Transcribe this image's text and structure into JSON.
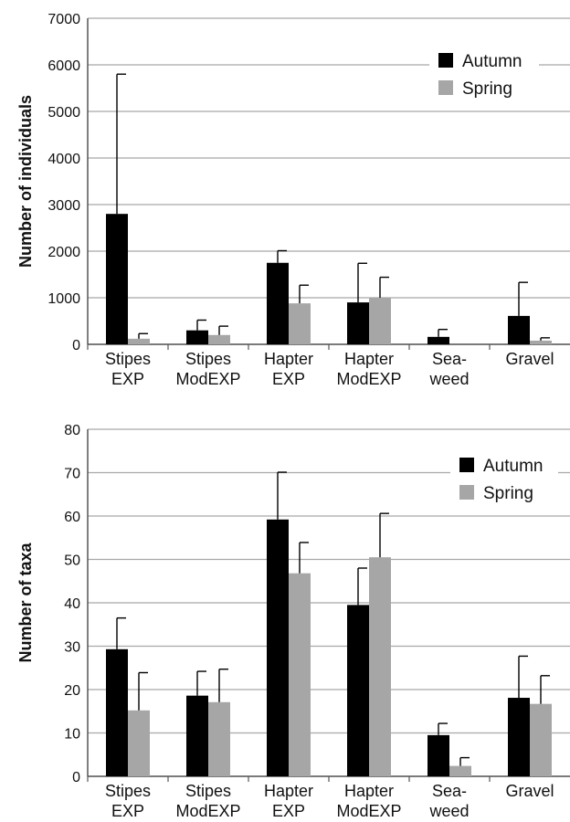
{
  "chart_data": [
    {
      "type": "bar",
      "ylabel": "Number of individuals",
      "ylim": [
        0,
        7000
      ],
      "yticks": [
        0,
        1000,
        2000,
        3000,
        4000,
        5000,
        6000,
        7000
      ],
      "categories": [
        "Stipes EXP",
        "Stipes ModEXP",
        "Hapter EXP",
        "Hapter ModEXP",
        "Sea- weed",
        "Gravel"
      ],
      "category_lines": [
        [
          "Stipes",
          "EXP"
        ],
        [
          "Stipes",
          "ModEXP"
        ],
        [
          "Hapter",
          "EXP"
        ],
        [
          "Hapter",
          "ModEXP"
        ],
        [
          "Sea-",
          "weed"
        ],
        [
          "Gravel",
          ""
        ]
      ],
      "series": [
        {
          "name": "Autumn",
          "color": "#000000",
          "values": [
            2800,
            300,
            1750,
            900,
            160,
            610
          ],
          "errors": [
            3000,
            220,
            260,
            840,
            160,
            720
          ]
        },
        {
          "name": "Spring",
          "color": "#a6a6a6",
          "values": [
            120,
            200,
            880,
            1000,
            null,
            80
          ],
          "errors": [
            110,
            190,
            390,
            440,
            null,
            60
          ]
        }
      ],
      "grid": true,
      "legend": "top-right"
    },
    {
      "type": "bar",
      "ylabel": "Number of taxa",
      "ylim": [
        0,
        80
      ],
      "yticks": [
        0,
        10,
        20,
        30,
        40,
        50,
        60,
        70,
        80
      ],
      "categories": [
        "Stipes EXP",
        "Stipes ModEXP",
        "Hapter EXP",
        "Hapter ModEXP",
        "Sea- weed",
        "Gravel"
      ],
      "category_lines": [
        [
          "Stipes",
          "EXP"
        ],
        [
          "Stipes",
          "ModEXP"
        ],
        [
          "Hapter",
          "EXP"
        ],
        [
          "Hapter",
          "ModEXP"
        ],
        [
          "Sea-",
          "weed"
        ],
        [
          "Gravel",
          ""
        ]
      ],
      "series": [
        {
          "name": "Autumn",
          "color": "#000000",
          "values": [
            29.3,
            18.6,
            59.2,
            39.5,
            9.5,
            18.1
          ],
          "errors": [
            7.2,
            5.6,
            10.9,
            8.5,
            2.7,
            9.6
          ]
        },
        {
          "name": "Spring",
          "color": "#a6a6a6",
          "values": [
            15.2,
            17.1,
            46.8,
            50.5,
            2.4,
            16.7
          ],
          "errors": [
            8.7,
            7.6,
            7.1,
            10.1,
            1.9,
            6.5
          ]
        }
      ],
      "grid": true,
      "legend": "top-right"
    }
  ]
}
